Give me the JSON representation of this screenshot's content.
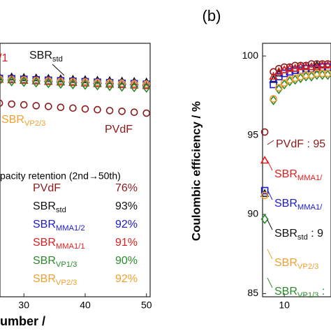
{
  "chart_data": [
    {
      "type": "scatter",
      "xlabel": "umber /",
      "xlim": [
        26.1,
        50.6
      ],
      "ylim": [
        -25.5,
        114.6
      ],
      "xticks": [
        30,
        40,
        50
      ],
      "x": [
        26,
        28,
        30,
        32,
        34,
        36,
        38,
        40,
        42,
        44,
        46,
        48,
        50
      ],
      "series": [
        {
          "name": "SBR",
          "sub": "std",
          "color": "#111111",
          "marker": "triangle",
          "values": [
            96,
            95.8,
            95.5,
            95.3,
            95,
            94.8,
            94.5,
            94.3,
            94,
            93.8,
            93.5,
            93.3,
            93
          ]
        },
        {
          "name": "SBR",
          "sub": "MMA1/2",
          "color": "#1a1acc",
          "marker": "square",
          "values": [
            95.2,
            95,
            94.7,
            94.4,
            94.2,
            93.9,
            93.6,
            93.4,
            93.1,
            92.8,
            92.5,
            92.3,
            92
          ]
        },
        {
          "name": "SBR",
          "sub": "VP2/3",
          "color": "#f0a030",
          "marker": "circle",
          "values": [
            94.8,
            94.6,
            94.4,
            94.1,
            93.9,
            93.6,
            93.4,
            93.2,
            92.9,
            92.7,
            92.5,
            92.2,
            92
          ]
        },
        {
          "name": "SBR",
          "sub": "MMA1/1",
          "color": "#e02020",
          "marker": "triangle",
          "values": [
            94.5,
            94.2,
            93.9,
            93.6,
            93.3,
            93,
            92.7,
            92.4,
            92.1,
            91.8,
            91.5,
            91.3,
            91
          ]
        },
        {
          "name": "SBR",
          "sub": "VP1/3",
          "color": "#2a8a2a",
          "marker": "diamond",
          "values": [
            93.8,
            93.5,
            93.2,
            92.9,
            92.5,
            92.2,
            91.9,
            91.6,
            91.3,
            90.9,
            90.6,
            90.3,
            90
          ]
        },
        {
          "name": "PVdF",
          "color": "#8b1a1a",
          "marker": "circle",
          "values": [
            81.5,
            81,
            80.6,
            80.1,
            79.7,
            79.2,
            78.8,
            78.3,
            77.9,
            77.4,
            77,
            76.5,
            76
          ]
        }
      ],
      "annotations": [
        {
          "text": "/1",
          "color": "#e02020"
        },
        {
          "text": "SBR",
          "sub": "std",
          "color": "#111111"
        },
        {
          "text": "SBR",
          "sub": "VP2/3",
          "color": "#f0a030"
        },
        {
          "text": "PVdF",
          "color": "#8b1a1a"
        }
      ],
      "retention_table": {
        "title": "pacity retention (2nd→50th)",
        "rows": [
          {
            "text": "PVdF",
            "value": "76%",
            "color": "#8b1a1a"
          },
          {
            "text": "SBR",
            "sub": "std",
            "value": "93%",
            "color": "#111111"
          },
          {
            "text": "SBR",
            "sub": "MMA1/2",
            "value": "92%",
            "color": "#1a1acc"
          },
          {
            "text": "SBR",
            "sub": "MMA1/1",
            "value": "91%",
            "color": "#e02020"
          },
          {
            "text": "SBR",
            "sub": "VP1/3",
            "value": "90%",
            "color": "#2a8a2a"
          },
          {
            "text": "SBR",
            "sub": "VP2/3",
            "value": "92%",
            "color": "#f0a030"
          }
        ]
      }
    },
    {
      "type": "scatter",
      "title": "(b)",
      "ylabel": "Coulombic efficiency / %",
      "xlim": [
        0,
        31.5
      ],
      "ylim": [
        84.8,
        100.8
      ],
      "xticks": [
        10
      ],
      "yticks": [
        85,
        90,
        95,
        100
      ],
      "x": [
        1,
        5,
        7.5,
        10,
        12.5,
        15,
        17.5,
        20,
        22.5,
        25,
        27.5,
        30
      ],
      "series": [
        {
          "name": "PVdF",
          "color": "#8b1a1a",
          "marker": "circle",
          "values": [
            95.2,
            99,
            99.2,
            99.3,
            99.3,
            99.4,
            99.4,
            99.4,
            99.5,
            99.5,
            99.5,
            99.5
          ]
        },
        {
          "name": "SBR",
          "sub": "std",
          "color": "#111111",
          "marker": "triangle",
          "values": [
            91.3,
            98.5,
            98.9,
            99.1,
            99.2,
            99.2,
            99.3,
            99.3,
            99.3,
            99.4,
            99.4,
            99.4
          ]
        },
        {
          "name": "SBR",
          "sub": "MMA1/2",
          "color": "#1a1acc",
          "marker": "square",
          "values": [
            91.5,
            98.2,
            98.7,
            98.9,
            99,
            99.1,
            99.1,
            99.2,
            99.2,
            99.2,
            99.3,
            99.3
          ]
        },
        {
          "name": "SBR",
          "sub": "MMA1/1",
          "color": "#e02020",
          "marker": "triangle",
          "values": [
            93.4,
            98.7,
            99,
            99.1,
            99.2,
            99.2,
            99.3,
            99.3,
            99.3,
            99.3,
            99.4,
            99.4
          ]
        },
        {
          "name": "SBR",
          "sub": "VP1/3",
          "color": "#2a8a2a",
          "marker": "diamond",
          "values": [
            89.7,
            97.2,
            97.9,
            98.2,
            98.4,
            98.5,
            98.6,
            98.7,
            98.7,
            98.8,
            98.8,
            98.8
          ]
        },
        {
          "name": "SBR",
          "sub": "VP2/3",
          "color": "#f0a030",
          "marker": "circle",
          "values": [
            91.2,
            97.3,
            98,
            98.3,
            98.5,
            98.6,
            98.7,
            98.8,
            98.8,
            98.9,
            98.9,
            98.9
          ]
        }
      ],
      "annotations": [
        {
          "text": "PVdF : 95",
          "color": "#8b1a1a"
        },
        {
          "text": "SBR",
          "sub": "MMA1/",
          "color": "#e02020"
        },
        {
          "text": "SBR",
          "sub": "MMA1/",
          "color": "#1a1acc"
        },
        {
          "text": "SBR",
          "sub": "std",
          "tail": " : 9",
          "color": "#111111"
        },
        {
          "text": "SBR",
          "sub": "VP2/3",
          "color": "#f0a030"
        },
        {
          "text": "SBR",
          "sub": "VP1/3",
          "tail": " :",
          "color": "#2a8a2a"
        }
      ]
    }
  ]
}
